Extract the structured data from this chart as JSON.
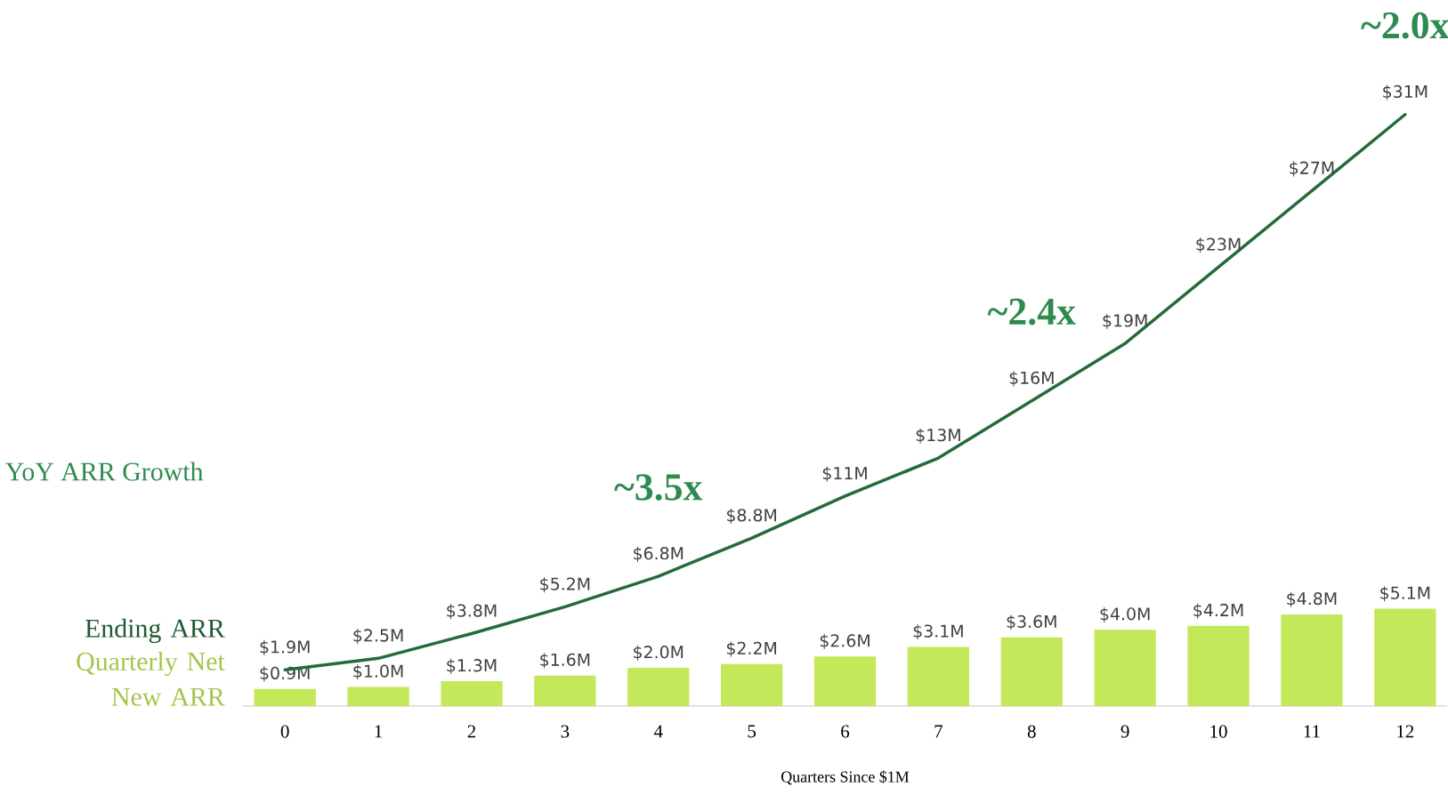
{
  "chart_data": {
    "type": "bar",
    "xlabel": "Quarters Since $1M",
    "categories": [
      "0",
      "1",
      "2",
      "3",
      "4",
      "5",
      "6",
      "7",
      "8",
      "9",
      "10",
      "11",
      "12"
    ],
    "series": [
      {
        "name": "Quarterly Net New ARR",
        "color": "#c3e85a",
        "values": [
          0.9,
          1.0,
          1.3,
          1.6,
          2.0,
          2.2,
          2.6,
          3.1,
          3.6,
          4.0,
          4.2,
          4.8,
          5.1
        ],
        "value_labels": [
          "$0.9M",
          "$1.0M",
          "$1.3M",
          "$1.6M",
          "$2.0M",
          "$2.2M",
          "$2.6M",
          "$3.1M",
          "$3.6M",
          "$4.0M",
          "$4.2M",
          "$4.8M",
          "$5.1M"
        ]
      },
      {
        "name": "Ending ARR",
        "type": "line",
        "color": "#256b3a",
        "values": [
          1.9,
          2.5,
          3.8,
          5.2,
          6.8,
          8.8,
          11,
          13,
          16,
          19,
          23,
          27,
          31
        ],
        "value_labels": [
          "$1.9M",
          "$2.5M",
          "$3.8M",
          "$5.2M",
          "$6.8M",
          "$8.8M",
          "$11M",
          "$13M",
          "$16M",
          "$19M",
          "$23M",
          "$27M",
          "$31M"
        ]
      }
    ],
    "annotations": [
      "YoY ARR Growth",
      "~3.5x",
      "~2.4x",
      "~2.0x"
    ],
    "legend": "left"
  }
}
